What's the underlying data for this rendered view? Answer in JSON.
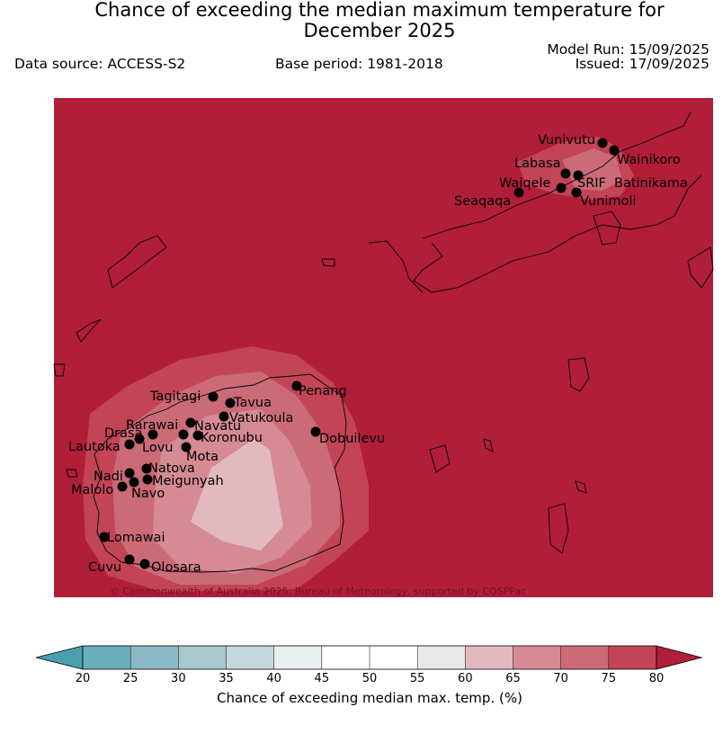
{
  "header": {
    "title_line1": "Chance of exceeding the median maximum temperature for",
    "title_line2": "December 2025",
    "data_source": "Data source: ACCESS-S2",
    "base_period": "Base period: 1981-2018",
    "model_run": "Model Run: 15/09/2025",
    "issued": "Issued: 17/09/2025"
  },
  "map": {
    "copyright": "© Commonwealth of Australia 2025, Bureau of Meteorology, supported by COSPPac",
    "stations": [
      {
        "name": "Vunivutu"
      },
      {
        "name": "Wainikoro"
      },
      {
        "name": "Labasa"
      },
      {
        "name": "Waiqele"
      },
      {
        "name": "SRIF"
      },
      {
        "name": "Batinikama"
      },
      {
        "name": "Seaqaqa"
      },
      {
        "name": "Vunimoli"
      },
      {
        "name": "Penang"
      },
      {
        "name": "Tagitagi"
      },
      {
        "name": "Tavua"
      },
      {
        "name": "Vatukoula"
      },
      {
        "name": "Rarawai"
      },
      {
        "name": "Navatu"
      },
      {
        "name": "Drasa"
      },
      {
        "name": "Koronubu"
      },
      {
        "name": "Lautoka"
      },
      {
        "name": "Lovu"
      },
      {
        "name": "Dobuilevu"
      },
      {
        "name": "Mota"
      },
      {
        "name": "Natova"
      },
      {
        "name": "Nadi"
      },
      {
        "name": "Meigunyah"
      },
      {
        "name": "Malolo"
      },
      {
        "name": "Navo"
      },
      {
        "name": "Lomawai"
      },
      {
        "name": "Cuvu"
      },
      {
        "name": "Olosara"
      }
    ]
  },
  "colorbar": {
    "label": "Chance of exceeding median max. temp. (%)",
    "ticks": [
      "20",
      "25",
      "30",
      "35",
      "40",
      "45",
      "50",
      "55",
      "60",
      "65",
      "70",
      "75",
      "80"
    ],
    "colors": {
      "under": "#4a9faf",
      "bins": [
        "#6aadbb",
        "#8cbac4",
        "#a9c8cd",
        "#c6d8db",
        "#e9eff1",
        "#ffffff",
        "#ffffff",
        "#e9e9e9",
        "#e1b9bf",
        "#d58a94",
        "#cb6b77",
        "#c24456"
      ],
      "over": "#b11e3a"
    }
  }
}
